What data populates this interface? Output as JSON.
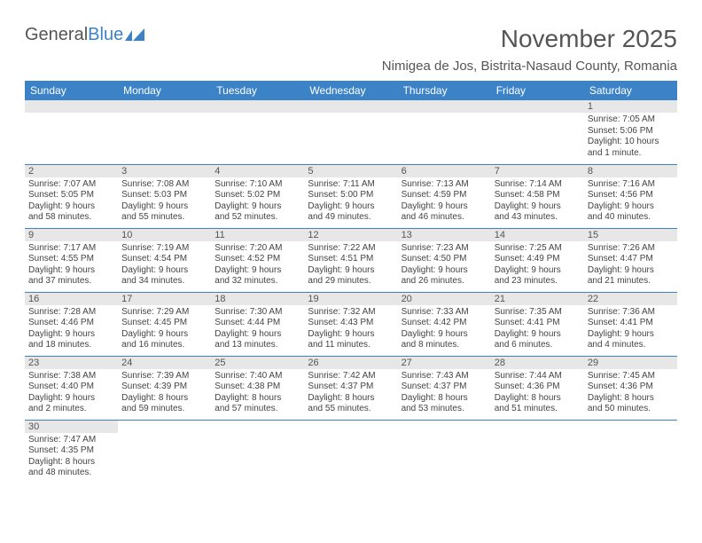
{
  "logo": {
    "text1": "General",
    "text2": "Blue"
  },
  "title": "November 2025",
  "location": "Nimigea de Jos, Bistrita-Nasaud County, Romania",
  "colors": {
    "header_bg": "#3b82c7",
    "header_fg": "#ffffff",
    "stripe": "#e7e7e7",
    "border": "#3b82c7"
  },
  "daysOfWeek": [
    "Sunday",
    "Monday",
    "Tuesday",
    "Wednesday",
    "Thursday",
    "Friday",
    "Saturday"
  ],
  "weeks": [
    [
      null,
      null,
      null,
      null,
      null,
      null,
      {
        "n": "1",
        "sr": "Sunrise: 7:05 AM",
        "ss": "Sunset: 5:06 PM",
        "d1": "Daylight: 10 hours",
        "d2": "and 1 minute."
      }
    ],
    [
      {
        "n": "2",
        "sr": "Sunrise: 7:07 AM",
        "ss": "Sunset: 5:05 PM",
        "d1": "Daylight: 9 hours",
        "d2": "and 58 minutes."
      },
      {
        "n": "3",
        "sr": "Sunrise: 7:08 AM",
        "ss": "Sunset: 5:03 PM",
        "d1": "Daylight: 9 hours",
        "d2": "and 55 minutes."
      },
      {
        "n": "4",
        "sr": "Sunrise: 7:10 AM",
        "ss": "Sunset: 5:02 PM",
        "d1": "Daylight: 9 hours",
        "d2": "and 52 minutes."
      },
      {
        "n": "5",
        "sr": "Sunrise: 7:11 AM",
        "ss": "Sunset: 5:00 PM",
        "d1": "Daylight: 9 hours",
        "d2": "and 49 minutes."
      },
      {
        "n": "6",
        "sr": "Sunrise: 7:13 AM",
        "ss": "Sunset: 4:59 PM",
        "d1": "Daylight: 9 hours",
        "d2": "and 46 minutes."
      },
      {
        "n": "7",
        "sr": "Sunrise: 7:14 AM",
        "ss": "Sunset: 4:58 PM",
        "d1": "Daylight: 9 hours",
        "d2": "and 43 minutes."
      },
      {
        "n": "8",
        "sr": "Sunrise: 7:16 AM",
        "ss": "Sunset: 4:56 PM",
        "d1": "Daylight: 9 hours",
        "d2": "and 40 minutes."
      }
    ],
    [
      {
        "n": "9",
        "sr": "Sunrise: 7:17 AM",
        "ss": "Sunset: 4:55 PM",
        "d1": "Daylight: 9 hours",
        "d2": "and 37 minutes."
      },
      {
        "n": "10",
        "sr": "Sunrise: 7:19 AM",
        "ss": "Sunset: 4:54 PM",
        "d1": "Daylight: 9 hours",
        "d2": "and 34 minutes."
      },
      {
        "n": "11",
        "sr": "Sunrise: 7:20 AM",
        "ss": "Sunset: 4:52 PM",
        "d1": "Daylight: 9 hours",
        "d2": "and 32 minutes."
      },
      {
        "n": "12",
        "sr": "Sunrise: 7:22 AM",
        "ss": "Sunset: 4:51 PM",
        "d1": "Daylight: 9 hours",
        "d2": "and 29 minutes."
      },
      {
        "n": "13",
        "sr": "Sunrise: 7:23 AM",
        "ss": "Sunset: 4:50 PM",
        "d1": "Daylight: 9 hours",
        "d2": "and 26 minutes."
      },
      {
        "n": "14",
        "sr": "Sunrise: 7:25 AM",
        "ss": "Sunset: 4:49 PM",
        "d1": "Daylight: 9 hours",
        "d2": "and 23 minutes."
      },
      {
        "n": "15",
        "sr": "Sunrise: 7:26 AM",
        "ss": "Sunset: 4:47 PM",
        "d1": "Daylight: 9 hours",
        "d2": "and 21 minutes."
      }
    ],
    [
      {
        "n": "16",
        "sr": "Sunrise: 7:28 AM",
        "ss": "Sunset: 4:46 PM",
        "d1": "Daylight: 9 hours",
        "d2": "and 18 minutes."
      },
      {
        "n": "17",
        "sr": "Sunrise: 7:29 AM",
        "ss": "Sunset: 4:45 PM",
        "d1": "Daylight: 9 hours",
        "d2": "and 16 minutes."
      },
      {
        "n": "18",
        "sr": "Sunrise: 7:30 AM",
        "ss": "Sunset: 4:44 PM",
        "d1": "Daylight: 9 hours",
        "d2": "and 13 minutes."
      },
      {
        "n": "19",
        "sr": "Sunrise: 7:32 AM",
        "ss": "Sunset: 4:43 PM",
        "d1": "Daylight: 9 hours",
        "d2": "and 11 minutes."
      },
      {
        "n": "20",
        "sr": "Sunrise: 7:33 AM",
        "ss": "Sunset: 4:42 PM",
        "d1": "Daylight: 9 hours",
        "d2": "and 8 minutes."
      },
      {
        "n": "21",
        "sr": "Sunrise: 7:35 AM",
        "ss": "Sunset: 4:41 PM",
        "d1": "Daylight: 9 hours",
        "d2": "and 6 minutes."
      },
      {
        "n": "22",
        "sr": "Sunrise: 7:36 AM",
        "ss": "Sunset: 4:41 PM",
        "d1": "Daylight: 9 hours",
        "d2": "and 4 minutes."
      }
    ],
    [
      {
        "n": "23",
        "sr": "Sunrise: 7:38 AM",
        "ss": "Sunset: 4:40 PM",
        "d1": "Daylight: 9 hours",
        "d2": "and 2 minutes."
      },
      {
        "n": "24",
        "sr": "Sunrise: 7:39 AM",
        "ss": "Sunset: 4:39 PM",
        "d1": "Daylight: 8 hours",
        "d2": "and 59 minutes."
      },
      {
        "n": "25",
        "sr": "Sunrise: 7:40 AM",
        "ss": "Sunset: 4:38 PM",
        "d1": "Daylight: 8 hours",
        "d2": "and 57 minutes."
      },
      {
        "n": "26",
        "sr": "Sunrise: 7:42 AM",
        "ss": "Sunset: 4:37 PM",
        "d1": "Daylight: 8 hours",
        "d2": "and 55 minutes."
      },
      {
        "n": "27",
        "sr": "Sunrise: 7:43 AM",
        "ss": "Sunset: 4:37 PM",
        "d1": "Daylight: 8 hours",
        "d2": "and 53 minutes."
      },
      {
        "n": "28",
        "sr": "Sunrise: 7:44 AM",
        "ss": "Sunset: 4:36 PM",
        "d1": "Daylight: 8 hours",
        "d2": "and 51 minutes."
      },
      {
        "n": "29",
        "sr": "Sunrise: 7:45 AM",
        "ss": "Sunset: 4:36 PM",
        "d1": "Daylight: 8 hours",
        "d2": "and 50 minutes."
      }
    ],
    [
      {
        "n": "30",
        "sr": "Sunrise: 7:47 AM",
        "ss": "Sunset: 4:35 PM",
        "d1": "Daylight: 8 hours",
        "d2": "and 48 minutes."
      },
      null,
      null,
      null,
      null,
      null,
      null
    ]
  ]
}
